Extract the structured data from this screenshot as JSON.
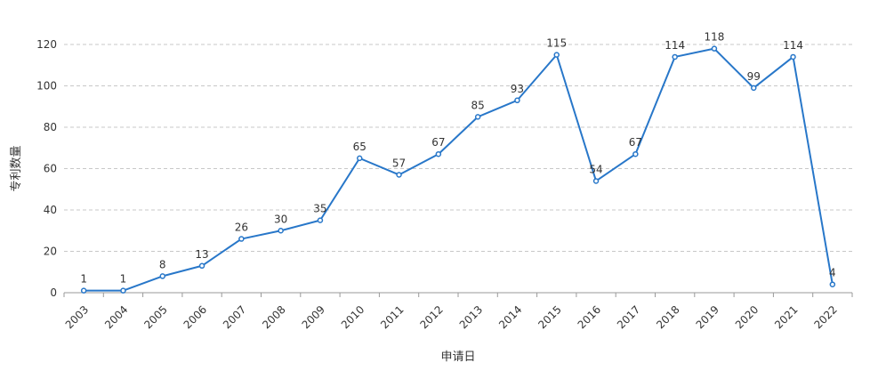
{
  "chart_data": {
    "type": "line",
    "categories": [
      "2003",
      "2004",
      "2005",
      "2006",
      "2007",
      "2008",
      "2009",
      "2010",
      "2011",
      "2012",
      "2013",
      "2014",
      "2015",
      "2016",
      "2017",
      "2018",
      "2019",
      "2020",
      "2021",
      "2022"
    ],
    "series": [
      {
        "values": [
          1,
          1,
          8,
          13,
          26,
          30,
          35,
          65,
          57,
          67,
          85,
          93,
          115,
          54,
          67,
          114,
          118,
          99,
          114,
          4
        ],
        "color": "#2877c9"
      }
    ],
    "xlabel": "申请日",
    "ylabel": "专利数量",
    "ylim": [
      0,
      120
    ],
    "yticks": [
      0,
      20,
      40,
      60,
      80,
      100,
      120
    ],
    "grid": "horizontal-dashed",
    "data_labels": true,
    "legend": "none",
    "colors": {
      "line": "#2877c9",
      "grid": "#c8c8c8",
      "axis": "#999999",
      "text": "#333333"
    }
  }
}
